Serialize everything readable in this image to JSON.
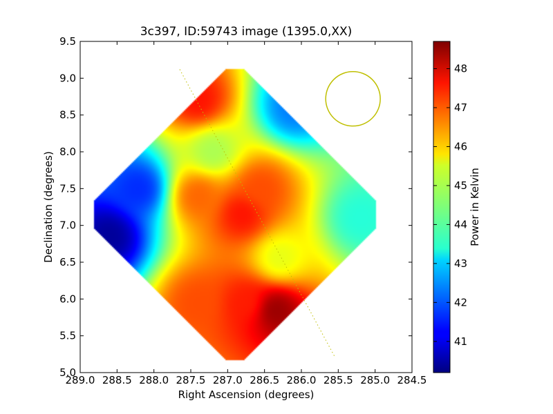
{
  "chart_data": {
    "type": "heatmap",
    "title": "3c397, ID:59743 image (1395.0,XX)",
    "xlabel": "Right Ascension (degrees)",
    "ylabel": "Declination (degrees)",
    "xlim": [
      289.0,
      284.5
    ],
    "ylim": [
      5.0,
      9.5
    ],
    "x_ticks": [
      "289.0",
      "288.5",
      "288.0",
      "287.5",
      "287.0",
      "286.5",
      "286.0",
      "285.5",
      "285.0",
      "284.5"
    ],
    "y_ticks": [
      "5.0",
      "5.5",
      "6.0",
      "6.5",
      "7.0",
      "7.5",
      "8.0",
      "8.5",
      "9.0",
      "9.5"
    ],
    "colorbar": {
      "label": "Power in Kelvin",
      "range": [
        40.2,
        48.7
      ],
      "ticks": [
        "41",
        "42",
        "43",
        "44",
        "45",
        "46",
        "47",
        "48"
      ],
      "colormap": "jet"
    },
    "map_center": [
      286.9,
      7.15
    ],
    "map_half_width_deg": 2.1,
    "hotspots": [
      {
        "ra": 286.35,
        "dec": 5.85,
        "value": 48.5
      },
      {
        "ra": 286.75,
        "dec": 5.95,
        "value": 47.4
      },
      {
        "ra": 287.4,
        "dec": 5.95,
        "value": 47.0
      },
      {
        "ra": 286.8,
        "dec": 7.15,
        "value": 47.5
      },
      {
        "ra": 287.4,
        "dec": 7.4,
        "value": 46.8
      },
      {
        "ra": 286.55,
        "dec": 7.5,
        "value": 47.0
      },
      {
        "ra": 287.4,
        "dec": 8.7,
        "value": 47.5
      },
      {
        "ra": 286.1,
        "dec": 8.6,
        "value": 42.3
      },
      {
        "ra": 288.6,
        "dec": 6.85,
        "value": 40.4
      },
      {
        "ra": 288.2,
        "dec": 7.5,
        "value": 41.6
      },
      {
        "ra": 286.3,
        "dec": 6.55,
        "value": 45.3
      },
      {
        "ra": 285.2,
        "dec": 7.1,
        "value": 43.7
      },
      {
        "ra": 287.2,
        "dec": 8.0,
        "value": 44.8
      }
    ],
    "background_value": 44.2,
    "beam_circle": {
      "ra": 285.3,
      "dec": 8.72,
      "radius_deg": 0.37,
      "color": "#bfbf00"
    },
    "galactic_plane_line": {
      "points": [
        [
          287.65,
          9.12
        ],
        [
          285.55,
          5.22
        ]
      ],
      "color": "#bfbf00",
      "style": "dotted"
    }
  }
}
